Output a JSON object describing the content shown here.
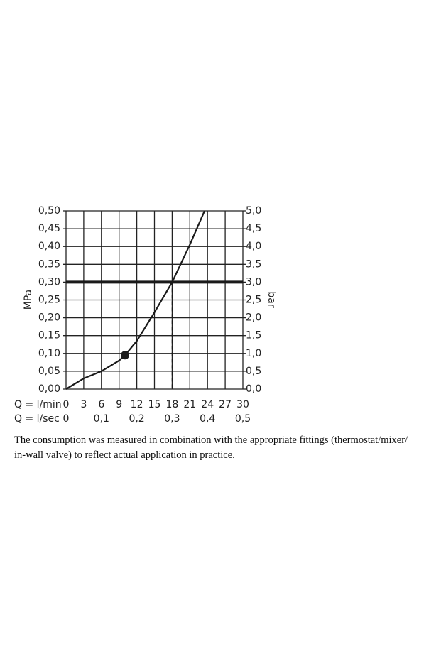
{
  "chart_data": {
    "type": "line",
    "y_label": "MPa",
    "y2_label": "bar",
    "x_label": "Q = l/min",
    "x2_label": "Q = l/sec",
    "xlim": [
      0,
      30
    ],
    "xticks": [
      0,
      3,
      6,
      9,
      12,
      15,
      18,
      21,
      24,
      27,
      30
    ],
    "x2lim": [
      0,
      0.5
    ],
    "x2ticks": [
      0,
      {
        "value": 0.1,
        "label": "0,1"
      },
      {
        "value": 0.2,
        "label": "0,2"
      },
      {
        "value": 0.3,
        "label": "0,3"
      },
      {
        "value": 0.4,
        "label": "0,4"
      },
      {
        "value": 0.5,
        "label": "0,5"
      }
    ],
    "ylim": [
      0,
      0.5
    ],
    "yticks": [
      {
        "value": 0,
        "label": "0,00"
      },
      {
        "value": 0.05,
        "label": "0,05"
      },
      {
        "value": 0.1,
        "label": "0,10"
      },
      {
        "value": 0.15,
        "label": "0,15"
      },
      {
        "value": 0.2,
        "label": "0,20"
      },
      {
        "value": 0.25,
        "label": "0,25"
      },
      {
        "value": 0.3,
        "label": "0,30"
      },
      {
        "value": 0.35,
        "label": "0,35"
      },
      {
        "value": 0.4,
        "label": "0,40"
      },
      {
        "value": 0.45,
        "label": "0,45"
      },
      {
        "value": 0.5,
        "label": "0,50"
      }
    ],
    "y2lim": [
      0,
      5
    ],
    "y2ticks": [
      {
        "value": 0,
        "label": "0,0"
      },
      {
        "value": 0.5,
        "label": "0,5"
      },
      {
        "value": 1,
        "label": "1,0"
      },
      {
        "value": 1.5,
        "label": "1,5"
      },
      {
        "value": 2,
        "label": "2,0"
      },
      {
        "value": 2.5,
        "label": "2,5"
      },
      {
        "value": 3,
        "label": "3,0"
      },
      {
        "value": 3.5,
        "label": "3,5"
      },
      {
        "value": 4,
        "label": "4,0"
      },
      {
        "value": 4.5,
        "label": "4,5"
      },
      {
        "value": 5,
        "label": "5,0"
      }
    ],
    "grid": true,
    "series": [
      {
        "color": "#1a1a1a",
        "x": [
          0,
          3,
          6,
          9,
          10,
          12,
          15,
          18,
          21,
          23.5
        ],
        "values": [
          0,
          0.03,
          0.05,
          0.08,
          0.095,
          0.135,
          0.215,
          0.3,
          0.405,
          0.5
        ]
      }
    ],
    "marker": {
      "x": 10,
      "y": 0.095
    },
    "hline": 0.3,
    "vline": 18
  },
  "caption": [
    "The consumption was measured in combination with the appropriate fittings (thermostat/mixer/",
    "in-wall valve) to reflect actual application in practice."
  ]
}
